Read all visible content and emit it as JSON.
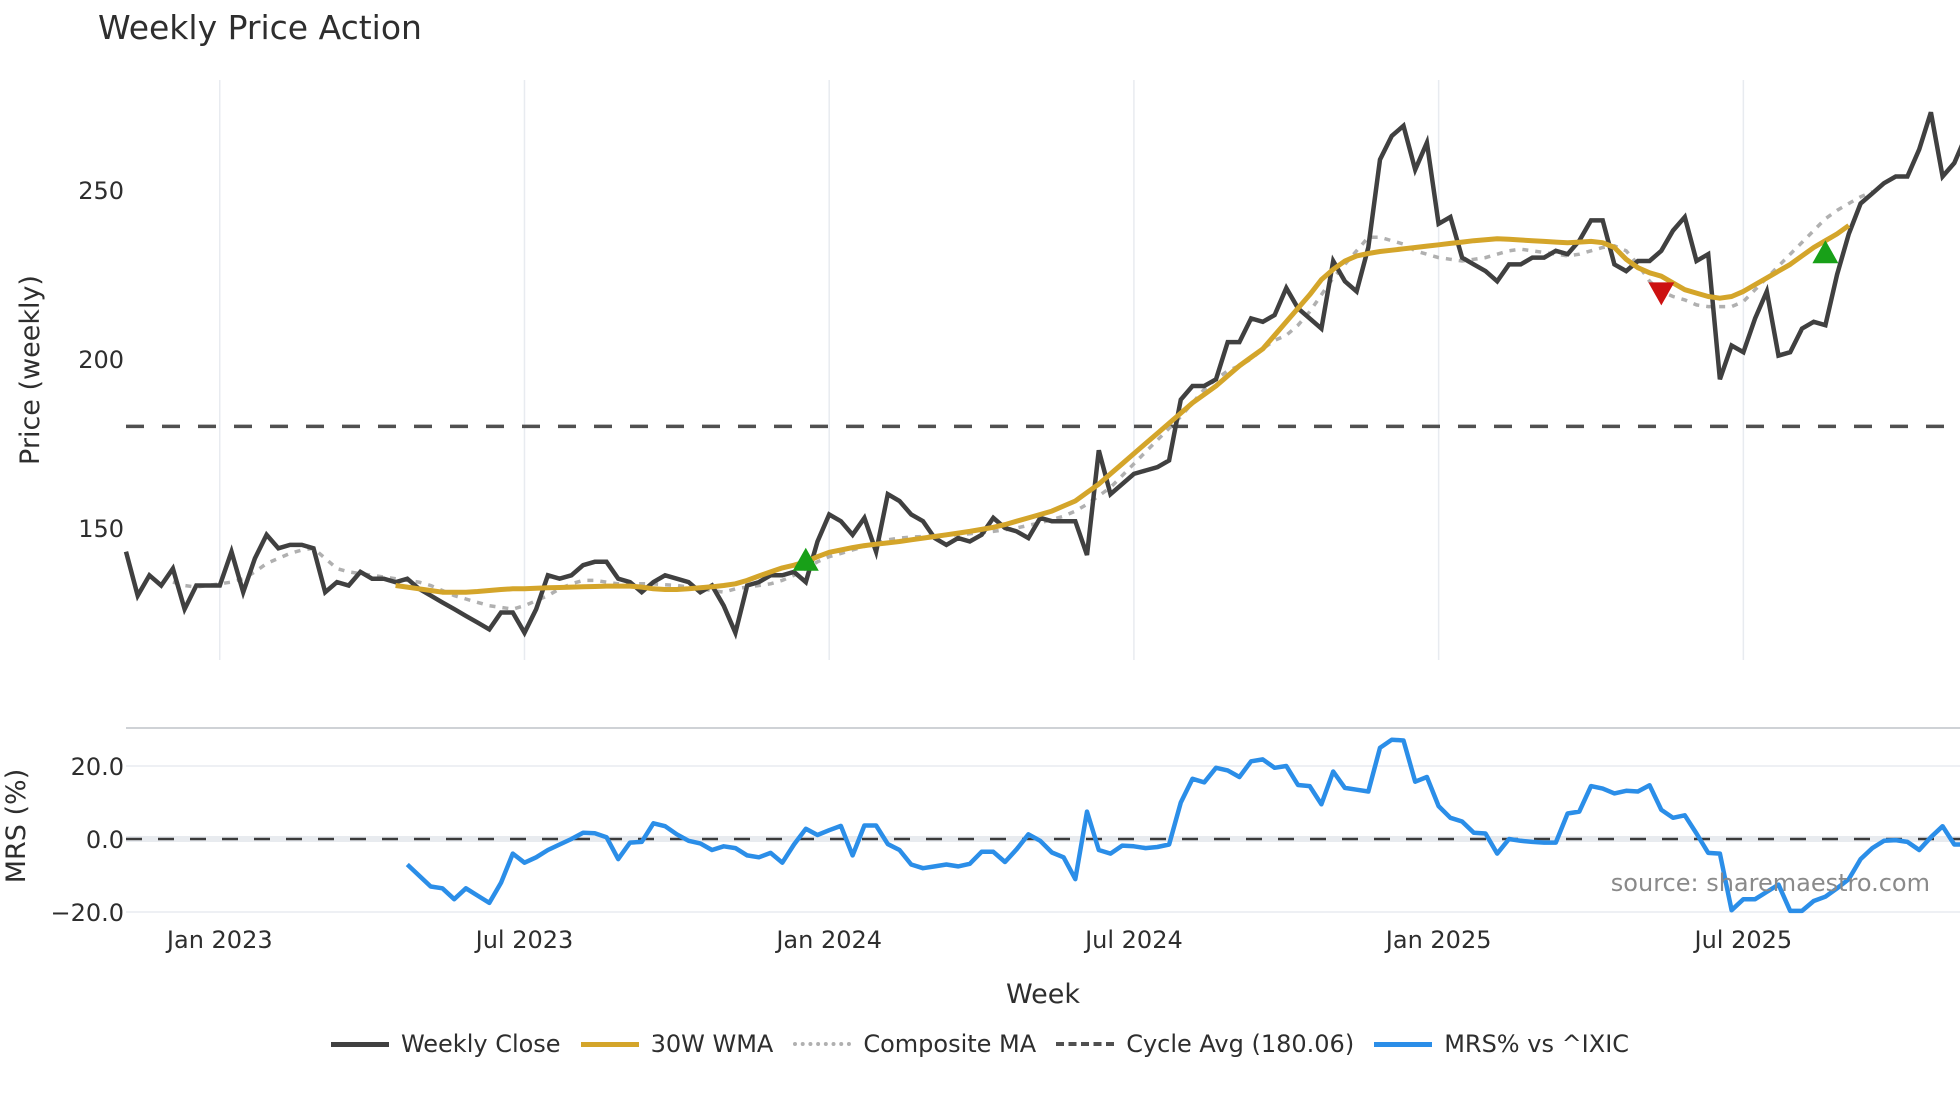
{
  "title": "Weekly Price Action",
  "source": "source: sharemaestro.com",
  "colors": {
    "weekly_close": "#404040",
    "wma": "#d4a52a",
    "composite": "#b0b0b0",
    "cycle": "#505050",
    "mrs": "#2b8ee8",
    "buy_marker": "#18a018",
    "sell_marker": "#cc1111",
    "grid": "#e8ebf0"
  },
  "legend": [
    {
      "key": "close",
      "label": "Weekly Close"
    },
    {
      "key": "wma",
      "label": "30W WMA"
    },
    {
      "key": "comp",
      "label": "Composite MA"
    },
    {
      "key": "cycle",
      "label": "Cycle Avg (180.06)"
    },
    {
      "key": "mrs",
      "label": "MRS% vs ^IXIC"
    }
  ],
  "chart_data": [
    {
      "type": "line",
      "title": "Weekly Price Action",
      "xlabel": "Week",
      "ylabel": "Price (weekly)",
      "yticks": [
        150,
        200,
        250
      ],
      "ylim": [
        112,
        277
      ],
      "xticks": [
        "Jan 2023",
        "Jul 2023",
        "Jan 2024",
        "Jul 2024",
        "Jan 2025",
        "Jul 2025"
      ],
      "xtick_week_index": [
        8,
        34,
        60,
        86,
        112,
        138
      ],
      "grid": true,
      "legend_position": "bottom",
      "cycle_avg": 180.06,
      "series": [
        {
          "name": "Weekly Close",
          "start_index": 0,
          "values": [
            143,
            130,
            136,
            133,
            138,
            126,
            133,
            133,
            133,
            143,
            131,
            141,
            148,
            144,
            145,
            145,
            144,
            131,
            134,
            133,
            137,
            135,
            135,
            134,
            135,
            132,
            130,
            128,
            126,
            124,
            122,
            120,
            125,
            125,
            119,
            126,
            136,
            135,
            136,
            139,
            140,
            140,
            135,
            134,
            131,
            134,
            136,
            135,
            134,
            131,
            133,
            127,
            119,
            133,
            134,
            136,
            136,
            137,
            134,
            146,
            154,
            152,
            148,
            153,
            143,
            160,
            158,
            154,
            152,
            147,
            145,
            147,
            146,
            148,
            153,
            150,
            149,
            147,
            153,
            152,
            152,
            152,
            142,
            173,
            160,
            163,
            166,
            167,
            168,
            170,
            188,
            192,
            192,
            194,
            205,
            205,
            212,
            211,
            213,
            221,
            215,
            212,
            209,
            229,
            223,
            220,
            233,
            259,
            266,
            269,
            256,
            264,
            240,
            242,
            230,
            228,
            226,
            223,
            228,
            228,
            230,
            230,
            232,
            231,
            235,
            241,
            241,
            228,
            226,
            229,
            229,
            232,
            238,
            242,
            229,
            231,
            194,
            204,
            202,
            212,
            220,
            201,
            202,
            209,
            211,
            210,
            225,
            237,
            246,
            249,
            252,
            254,
            254,
            262,
            273,
            254,
            258,
            266,
            258
          ]
        },
        {
          "name": "30W WMA",
          "start_index": 23,
          "values": [
            133,
            132.5,
            132,
            131.5,
            131,
            131,
            131,
            131.2,
            131.5,
            131.8,
            132,
            132,
            132.2,
            132.3,
            132.4,
            132.5,
            132.6,
            132.7,
            132.8,
            132.8,
            132.8,
            132.5,
            132,
            131.8,
            131.8,
            132,
            132.3,
            132.6,
            133,
            133.5,
            134.5,
            135.8,
            137,
            138.2,
            139,
            140,
            141.5,
            142.8,
            143.5,
            144.2,
            144.8,
            145.2,
            145.6,
            146,
            146.5,
            147,
            147.5,
            148,
            148.5,
            149,
            149.6,
            150.2,
            151,
            152,
            153,
            154,
            155,
            156.5,
            158,
            160.5,
            163,
            166,
            169,
            172,
            175,
            178,
            181,
            184,
            187,
            189.5,
            192,
            195,
            198,
            200.5,
            203,
            207,
            211,
            215,
            219,
            223.5,
            226.5,
            229,
            230.5,
            231.2,
            231.8,
            232.2,
            232.6,
            233,
            233.4,
            233.8,
            234.2,
            234.6,
            235,
            235.3,
            235.6,
            235.4,
            235.2,
            235,
            234.8,
            234.6,
            234.4,
            234.6,
            234.8,
            234.4,
            233,
            229.5,
            227,
            225.5,
            224.5,
            222.5,
            220.5,
            219.5,
            218.5,
            218,
            218.5,
            220,
            222,
            224,
            226,
            228,
            230.5,
            233,
            235,
            237,
            239.5
          ]
        },
        {
          "name": "Composite MA",
          "start_index": 4,
          "values": [
            134,
            133,
            132.5,
            133,
            133.5,
            134,
            135,
            137,
            139.5,
            141,
            142.5,
            143.5,
            144,
            141,
            138,
            137,
            136.5,
            136,
            135.5,
            135,
            134.5,
            134,
            133,
            131.5,
            130,
            129,
            128,
            127,
            126.5,
            126,
            127,
            128.5,
            130,
            132,
            133.5,
            134.5,
            134.5,
            134,
            133.5,
            133.5,
            133.5,
            133.5,
            133.2,
            133,
            132.5,
            132,
            131.5,
            131,
            132,
            132.5,
            133,
            133.5,
            134.5,
            136,
            138,
            140,
            141.5,
            142.5,
            143.5,
            144.5,
            145.5,
            146.5,
            147,
            147.3,
            147.5,
            147.7,
            147.8,
            148,
            148.3,
            148.6,
            149,
            149.5,
            150,
            150.8,
            151.5,
            152.5,
            153.5,
            155,
            157,
            159.5,
            162,
            165.5,
            169,
            172.5,
            176,
            179.5,
            183,
            187,
            191,
            194,
            196.5,
            198,
            200,
            203,
            205.5,
            207,
            210,
            214,
            219,
            224,
            228,
            232,
            236,
            236,
            235,
            234,
            232,
            231,
            230,
            229.5,
            229,
            229.5,
            230,
            231,
            232,
            232.5,
            232,
            231.5,
            231,
            230.5,
            231,
            232,
            233,
            233.5,
            232,
            228,
            223,
            220,
            218.5,
            217.5,
            216,
            215.5,
            215.5,
            215.5,
            217,
            220.5,
            224,
            227.5,
            231,
            234.5,
            238,
            241.5,
            244,
            246,
            248,
            249.5
          ]
        },
        {
          "name": "Cycle Avg (180.06)",
          "constant": 180.06
        }
      ],
      "markers": [
        {
          "type": "buy",
          "shape": "triangle-up",
          "week_index": 58,
          "value": 140
        },
        {
          "type": "sell",
          "shape": "triangle-down",
          "week_index": 131,
          "value": 220
        },
        {
          "type": "buy",
          "shape": "triangle-up",
          "week_index": 145,
          "value": 231
        }
      ]
    },
    {
      "type": "line",
      "title": "",
      "xlabel": "Week",
      "ylabel": "MRS (%)",
      "yticks": [
        -20.0,
        0.0,
        20.0
      ],
      "ylim": [
        -20.5,
        31
      ],
      "grid": true,
      "zero_line": 0.0,
      "series": [
        {
          "name": "MRS% vs ^IXIC",
          "start_index": 24,
          "values": [
            -7,
            -10,
            -13,
            -13.5,
            -16.5,
            -13.5,
            -15.5,
            -17.5,
            -12,
            -4,
            -6.5,
            -5,
            -3,
            -1.5,
            0,
            1.7,
            1.6,
            0.5,
            -5.5,
            -1,
            -0.8,
            4.3,
            3.5,
            1.3,
            -0.5,
            -1.2,
            -3,
            -2,
            -2.5,
            -4.5,
            -5,
            -3.8,
            -6.5,
            -1.5,
            2.8,
            1.1,
            2.4,
            3.6,
            -4.5,
            3.7,
            3.7,
            -1.4,
            -3,
            -7,
            -8,
            -7.5,
            -7,
            -7.5,
            -6.8,
            -3.5,
            -3.5,
            -6.3,
            -2.8,
            1.3,
            -0.5,
            -3.7,
            -5,
            -11,
            7.5,
            -3,
            -4,
            -1.8,
            -2,
            -2.5,
            -2.2,
            -1.5,
            10,
            16.5,
            15.5,
            19.5,
            18.8,
            17,
            21.3,
            21.8,
            19.5,
            20,
            14.8,
            14.5,
            9.5,
            18.5,
            14,
            13.5,
            13,
            25,
            27.2,
            27,
            15.7,
            17,
            9,
            5.8,
            4.8,
            1.7,
            1.5,
            -4,
            0,
            -0.5,
            -0.8,
            -1,
            -1,
            7,
            7.5,
            14.5,
            13.8,
            12.5,
            13.2,
            13,
            14.7,
            8,
            5.8,
            6.5,
            1.5,
            -3.8,
            -4,
            -19.5,
            -16.5,
            -16.5,
            -14.5,
            -12.5,
            -19.7,
            -19.7,
            -17,
            -15.8,
            -13.5,
            -11,
            -5.5,
            -2.5,
            -0.5,
            -0.3,
            -0.8,
            -3,
            0.5,
            3.5,
            -1.5,
            -1.5,
            -0.5,
            -5
          ]
        }
      ]
    }
  ],
  "axes": {
    "price_ylabel": "Price (weekly)",
    "mrs_ylabel": "MRS (%)",
    "xlabel": "Week",
    "price_ticks": [
      "250",
      "200",
      "150"
    ],
    "mrs_ticks": [
      "20.0",
      "0.0",
      "−20.0"
    ],
    "x_ticks": [
      "Jan 2023",
      "Jul 2023",
      "Jan 2024",
      "Jul 2024",
      "Jan 2025",
      "Jul 2025"
    ]
  }
}
